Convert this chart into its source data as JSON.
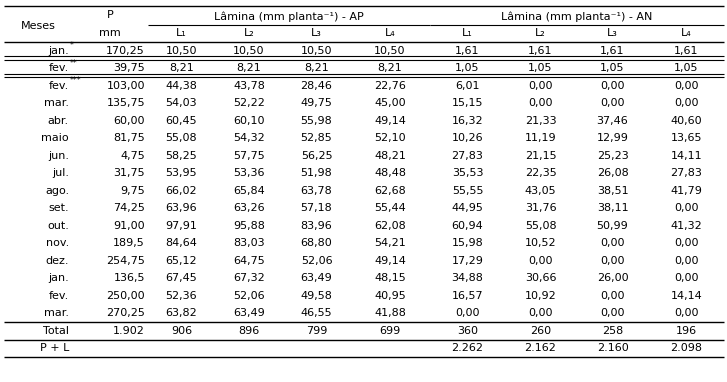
{
  "col_headers_ap": "Lâmina (mm planta⁻¹) - AP",
  "col_headers_an": "Lâmina (mm planta⁻¹) - AN",
  "l_labels": [
    "L₁",
    "L₂",
    "L₃",
    "L₄"
  ],
  "rows": [
    [
      "jan.*",
      "170,25",
      "10,50",
      "10,50",
      "10,50",
      "10,50",
      "1,61",
      "1,61",
      "1,61",
      "1,61"
    ],
    [
      "fev.**",
      "39,75",
      "8,21",
      "8,21",
      "8,21",
      "8,21",
      "1,05",
      "1,05",
      "1,05",
      "1,05"
    ],
    [
      "fev.***",
      "103,00",
      "44,38",
      "43,78",
      "28,46",
      "22,76",
      "6,01",
      "0,00",
      "0,00",
      "0,00"
    ],
    [
      "mar.",
      "135,75",
      "54,03",
      "52,22",
      "49,75",
      "45,00",
      "15,15",
      "0,00",
      "0,00",
      "0,00"
    ],
    [
      "abr.",
      "60,00",
      "60,45",
      "60,10",
      "55,98",
      "49,14",
      "16,32",
      "21,33",
      "37,46",
      "40,60"
    ],
    [
      "maio",
      "81,75",
      "55,08",
      "54,32",
      "52,85",
      "52,10",
      "10,26",
      "11,19",
      "12,99",
      "13,65"
    ],
    [
      "jun.",
      "4,75",
      "58,25",
      "57,75",
      "56,25",
      "48,21",
      "27,83",
      "21,15",
      "25,23",
      "14,11"
    ],
    [
      "jul.",
      "31,75",
      "53,95",
      "53,36",
      "51,98",
      "48,48",
      "35,53",
      "22,35",
      "26,08",
      "27,83"
    ],
    [
      "ago.",
      "9,75",
      "66,02",
      "65,84",
      "63,78",
      "62,68",
      "55,55",
      "43,05",
      "38,51",
      "41,79"
    ],
    [
      "set.",
      "74,25",
      "63,96",
      "63,26",
      "57,18",
      "55,44",
      "44,95",
      "31,76",
      "38,11",
      "0,00"
    ],
    [
      "out.",
      "91,00",
      "97,91",
      "95,88",
      "83,96",
      "62,08",
      "60,94",
      "55,08",
      "50,99",
      "41,32"
    ],
    [
      "nov.",
      "189,5",
      "84,64",
      "83,03",
      "68,80",
      "54,21",
      "15,98",
      "10,52",
      "0,00",
      "0,00"
    ],
    [
      "dez.",
      "254,75",
      "65,12",
      "64,75",
      "52,06",
      "49,14",
      "17,29",
      "0,00",
      "0,00",
      "0,00"
    ],
    [
      "jan.",
      "136,5",
      "67,45",
      "67,32",
      "63,49",
      "48,15",
      "34,88",
      "30,66",
      "26,00",
      "0,00"
    ],
    [
      "fev.",
      "250,00",
      "52,36",
      "52,06",
      "49,58",
      "40,95",
      "16,57",
      "10,92",
      "0,00",
      "14,14"
    ],
    [
      "mar.",
      "270,25",
      "63,82",
      "63,49",
      "46,55",
      "41,88",
      "0,00",
      "0,00",
      "0,00",
      "0,00"
    ]
  ],
  "total_row": [
    "Total",
    "1.902",
    "906",
    "896",
    "799",
    "699",
    "360",
    "260",
    "258",
    "196"
  ],
  "pl_row": [
    "P + L",
    "",
    "",
    "",
    "",
    "",
    "2.262",
    "2.162",
    "2.160",
    "2.098"
  ],
  "bg_color": "#ffffff",
  "text_color": "#000000",
  "font_size": 8.0
}
